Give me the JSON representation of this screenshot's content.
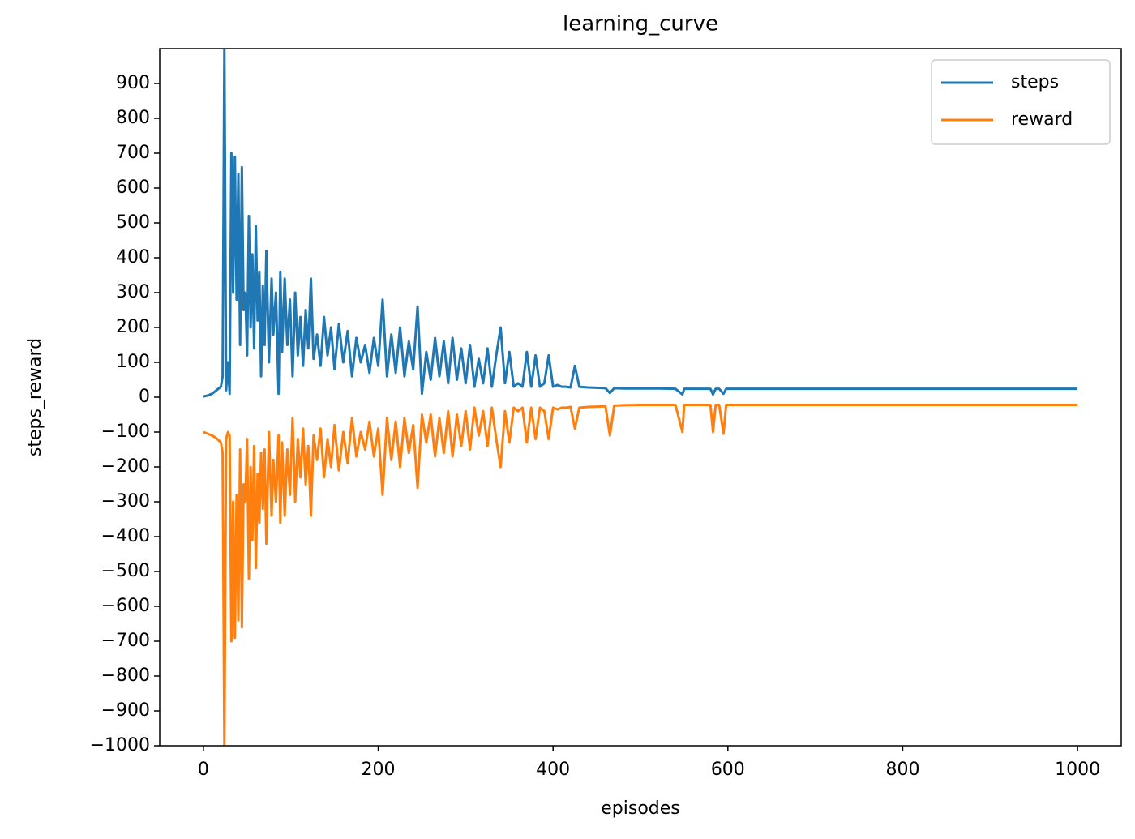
{
  "chart_data": {
    "type": "line",
    "title": "learning_curve",
    "x_label": "episodes",
    "y_label": "steps_reward",
    "xlim": [
      -50,
      1050
    ],
    "ylim": [
      -1000,
      1000
    ],
    "xticks": [
      0,
      200,
      400,
      600,
      800,
      1000
    ],
    "yticks": [
      {
        "value": -1000,
        "label": "−1000"
      },
      {
        "value": -900,
        "label": "−900"
      },
      {
        "value": -800,
        "label": "−800"
      },
      {
        "value": -700,
        "label": "−700"
      },
      {
        "value": -600,
        "label": "−600"
      },
      {
        "value": -500,
        "label": "−500"
      },
      {
        "value": -400,
        "label": "−400"
      },
      {
        "value": -300,
        "label": "−300"
      },
      {
        "value": -200,
        "label": "−200"
      },
      {
        "value": -100,
        "label": "−100"
      },
      0,
      100,
      200,
      300,
      400,
      500,
      600,
      700,
      800,
      900
    ],
    "legend": "upper right",
    "x": [
      0,
      5,
      10,
      15,
      20,
      22,
      24,
      26,
      28,
      30,
      32,
      34,
      36,
      38,
      40,
      42,
      44,
      46,
      48,
      50,
      52,
      54,
      56,
      58,
      60,
      62,
      64,
      66,
      68,
      70,
      72,
      75,
      78,
      80,
      83,
      86,
      88,
      90,
      93,
      96,
      99,
      102,
      105,
      108,
      111,
      114,
      117,
      120,
      123,
      126,
      130,
      134,
      138,
      142,
      146,
      150,
      155,
      160,
      165,
      170,
      175,
      180,
      185,
      190,
      195,
      200,
      205,
      210,
      215,
      220,
      225,
      230,
      235,
      240,
      245,
      250,
      255,
      260,
      265,
      270,
      275,
      280,
      285,
      290,
      295,
      300,
      305,
      310,
      315,
      320,
      325,
      330,
      335,
      340,
      345,
      350,
      355,
      360,
      365,
      370,
      375,
      380,
      385,
      390,
      395,
      400,
      405,
      410,
      415,
      420,
      425,
      430,
      440,
      450,
      460,
      465,
      470,
      480,
      500,
      520,
      540,
      548,
      550,
      560,
      580,
      583,
      586,
      590,
      595,
      598,
      600,
      650,
      700,
      800,
      900,
      1000
    ],
    "series": [
      {
        "name": "steps",
        "color": "#1f77b4",
        "values": [
          2,
          5,
          10,
          20,
          30,
          60,
          1000,
          20,
          100,
          10,
          700,
          300,
          690,
          280,
          640,
          150,
          660,
          250,
          300,
          120,
          520,
          200,
          410,
          140,
          490,
          220,
          360,
          60,
          320,
          150,
          420,
          100,
          340,
          180,
          300,
          10,
          360,
          130,
          340,
          150,
          280,
          60,
          300,
          120,
          230,
          90,
          250,
          140,
          340,
          110,
          180,
          90,
          230,
          120,
          200,
          80,
          210,
          100,
          190,
          60,
          170,
          100,
          150,
          70,
          170,
          90,
          280,
          60,
          180,
          70,
          200,
          60,
          160,
          80,
          260,
          10,
          130,
          50,
          170,
          60,
          160,
          40,
          170,
          50,
          140,
          40,
          150,
          30,
          110,
          40,
          140,
          30,
          120,
          200,
          40,
          130,
          30,
          40,
          30,
          130,
          30,
          120,
          30,
          40,
          120,
          30,
          35,
          30,
          30,
          28,
          90,
          30,
          28,
          27,
          26,
          12,
          26,
          25,
          25,
          25,
          24,
          8,
          24,
          24,
          24,
          8,
          24,
          24,
          10,
          24,
          24,
          24,
          24,
          24,
          24,
          24
        ]
      },
      {
        "name": "reward",
        "color": "#ff7f0e",
        "values": [
          -100,
          -105,
          -110,
          -118,
          -130,
          -160,
          -1000,
          -120,
          -100,
          -110,
          -700,
          -300,
          -690,
          -280,
          -640,
          -150,
          -660,
          -250,
          -300,
          -120,
          -520,
          -200,
          -410,
          -140,
          -490,
          -220,
          -360,
          -160,
          -320,
          -150,
          -420,
          -100,
          -340,
          -180,
          -300,
          -110,
          -360,
          -130,
          -340,
          -150,
          -280,
          -60,
          -300,
          -120,
          -230,
          -90,
          -250,
          -140,
          -340,
          -110,
          -180,
          -90,
          -230,
          -120,
          -200,
          -80,
          -210,
          -100,
          -190,
          -60,
          -170,
          -100,
          -150,
          -70,
          -170,
          -90,
          -280,
          -60,
          -180,
          -70,
          -200,
          -60,
          -160,
          -80,
          -260,
          -50,
          -130,
          -50,
          -170,
          -60,
          -160,
          -40,
          -170,
          -50,
          -140,
          -40,
          -150,
          -30,
          -110,
          -40,
          -140,
          -30,
          -120,
          -200,
          -40,
          -130,
          -30,
          -40,
          -30,
          -130,
          -30,
          -120,
          -30,
          -40,
          -120,
          -30,
          -35,
          -30,
          -30,
          -28,
          -90,
          -30,
          -28,
          -27,
          -26,
          -110,
          -24,
          -23,
          -22,
          -22,
          -22,
          -100,
          -22,
          -22,
          -22,
          -100,
          -22,
          -22,
          -105,
          -22,
          -22,
          -22,
          -22,
          -22,
          -22,
          -22
        ]
      }
    ]
  }
}
